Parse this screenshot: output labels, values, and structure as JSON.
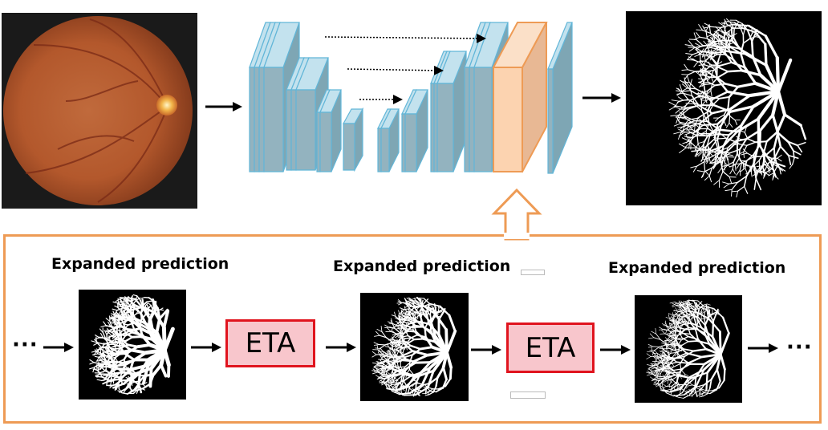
{
  "pipeline": {
    "input_image": "fundus-photograph",
    "output_image": "vessel-segmentation-map",
    "network": "encoder-decoder"
  },
  "refinement": {
    "steps": [
      {
        "label": "Expanded prediction"
      },
      {
        "label": "Expanded prediction"
      },
      {
        "label": "Expanded prediction"
      }
    ],
    "module_label_1": "ETA",
    "module_label_2": "ETA",
    "ellipsis_left": "···",
    "ellipsis_right": "···"
  },
  "colors": {
    "panel_border": "#ee9b55",
    "eta_fill": "#f8c6cc",
    "eta_border": "#e0141e",
    "layer_fill": "#93b3bf",
    "layer_edge": "#b5dced",
    "highlight_fill": "#fcd3b0",
    "highlight_edge": "#ee9b55"
  }
}
